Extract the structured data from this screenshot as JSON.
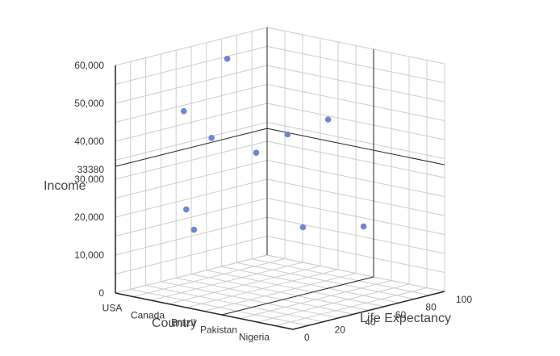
{
  "chart_data": {
    "type": "scatter",
    "title": "",
    "axes": {
      "x": {
        "label": "Country",
        "categories": [
          "USA",
          "Canada",
          "Brazil",
          "Pakistan",
          "Nigeria"
        ]
      },
      "z": {
        "label": "Life Expectancy",
        "range": [
          0,
          100
        ],
        "ticks": [
          0,
          20,
          40,
          60,
          80,
          100
        ]
      },
      "y": {
        "label": "Income",
        "range": [
          0,
          60000
        ],
        "ticks": [
          0,
          10000,
          20000,
          30000,
          40000,
          50000,
          60000
        ],
        "tick_labels": [
          "0",
          "10,000",
          "20,000",
          "30,000",
          "40,000",
          "50,000",
          "60,000"
        ]
      }
    },
    "grid": true,
    "legend": "none",
    "colors": {
      "point": "#6f86d0",
      "grid": "#cccccc",
      "axis": "#222222",
      "crosshair": "#222222"
    },
    "crosshair": {
      "value": 33380,
      "value_label": "33380"
    },
    "points": [
      {
        "x": 0.5,
        "z": 62,
        "y": 56500
      },
      {
        "x": 2.0,
        "z": 46,
        "y": 36200
      },
      {
        "x": 3.0,
        "z": 70,
        "y": 44500
      },
      {
        "x": 2.5,
        "z": 55,
        "y": 41100
      },
      {
        "x": 1.5,
        "z": 10,
        "y": 49800
      },
      {
        "x": 1.0,
        "z": 40,
        "y": 38800
      },
      {
        "x": 4.0,
        "z": 30,
        "y": 22000
      },
      {
        "x": 0.5,
        "z": 35,
        "y": 19500
      },
      {
        "x": 4.0,
        "z": 70,
        "y": 18200
      },
      {
        "x": 2.0,
        "z": 5,
        "y": 20000
      }
    ]
  }
}
